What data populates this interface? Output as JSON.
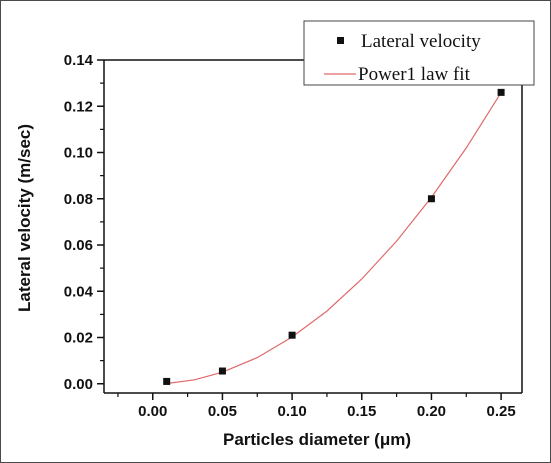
{
  "chart_data": {
    "type": "scatter",
    "title": "",
    "xlabel": "Particles diameter (μm)",
    "ylabel": "Lateral velocity (m/sec)",
    "xlim": [
      -0.035,
      0.265
    ],
    "ylim": [
      -0.004,
      0.14
    ],
    "x_ticks": [
      0.0,
      0.05,
      0.1,
      0.15,
      0.2,
      0.25
    ],
    "x_tick_labels": [
      "0.00",
      "0.05",
      "0.10",
      "0.15",
      "0.20",
      "0.25"
    ],
    "y_ticks": [
      0.0,
      0.02,
      0.04,
      0.06,
      0.08,
      0.1,
      0.12,
      0.14
    ],
    "y_tick_labels": [
      "0.00",
      "0.02",
      "0.04",
      "0.06",
      "0.08",
      "0.10",
      "0.12",
      "0.14"
    ],
    "grid": false,
    "legend_position": "top-right",
    "series": [
      {
        "name": "Lateral velocity",
        "kind": "points",
        "color": "#111111",
        "marker": "square",
        "x": [
          0.01,
          0.05,
          0.1,
          0.2,
          0.25
        ],
        "y": [
          0.001,
          0.0055,
          0.021,
          0.08,
          0.126
        ]
      },
      {
        "name": "Power1 law fit",
        "kind": "line",
        "color": "#e06a6a",
        "x": [
          0.01,
          0.03,
          0.05,
          0.075,
          0.1,
          0.125,
          0.15,
          0.175,
          0.2,
          0.225,
          0.25
        ],
        "y": [
          0.0001,
          0.0017,
          0.005,
          0.0113,
          0.0202,
          0.0314,
          0.0453,
          0.0617,
          0.0806,
          0.102,
          0.1259
        ]
      }
    ]
  }
}
